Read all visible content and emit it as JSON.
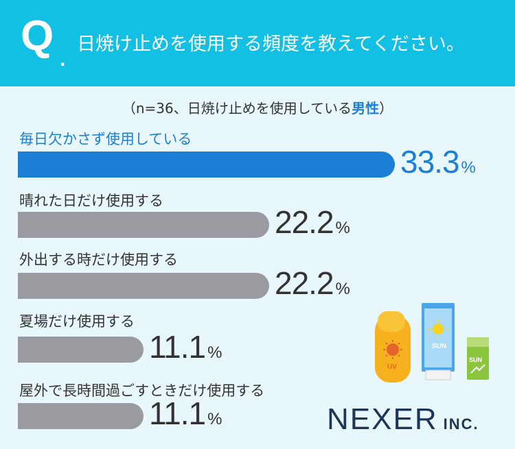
{
  "header": {
    "q_mark": "Q",
    "q_dot": ".",
    "question": "日焼け止めを使用する頻度を教えてください。"
  },
  "subtitle": {
    "before": "（n=36、日焼け止めを使用している",
    "highlight": "男性",
    "after": "）"
  },
  "chart_data": {
    "type": "bar",
    "orientation": "horizontal",
    "categories": [
      "毎日欠かさず使用している",
      "晴れた日だけ使用する",
      "外出する時だけ使用する",
      "夏場だけ使用する",
      "屋外で長時間過ごすときだけ使用する"
    ],
    "values": [
      33.3,
      22.2,
      22.2,
      11.1,
      11.1
    ],
    "value_labels": [
      "33.3",
      "22.2",
      "22.2",
      "11.1",
      "11.1"
    ],
    "unit": "%",
    "colors": {
      "highlight": "#1c7fd6",
      "default": "#9a9ba0"
    }
  },
  "illustration": {
    "uv_label": "UV",
    "sun_label_tube": "SUN",
    "sun_label_small": "SUN"
  },
  "logo": {
    "main": "NEXER",
    "inc": "INC."
  },
  "colors": {
    "header_bg": "#12c0e3",
    "page_bg": "#e8f7fb",
    "accent": "#1c7fd6"
  }
}
